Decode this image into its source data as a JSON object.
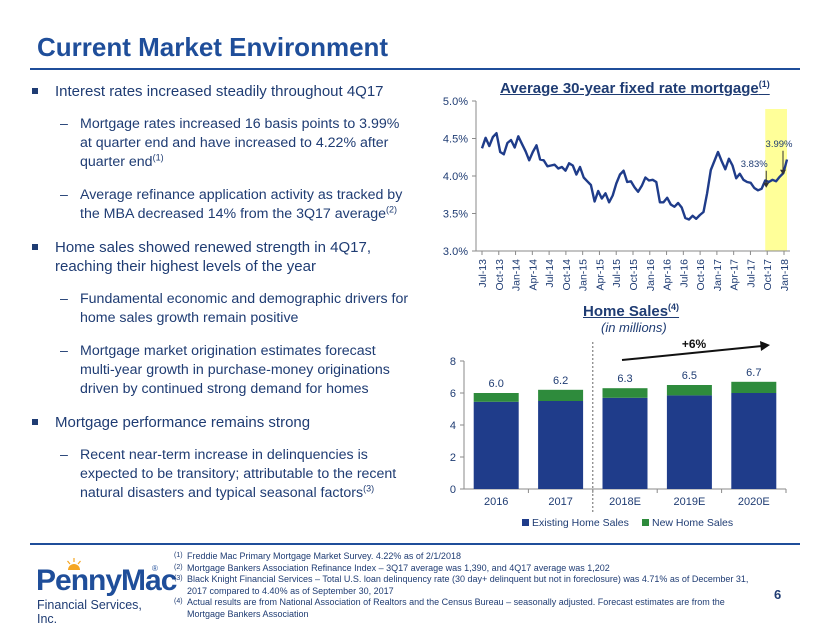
{
  "slide": {
    "title": "Current Market Environment",
    "page_number": "6"
  },
  "bullets": [
    {
      "text": "Interest rates increased steadily throughout 4Q17",
      "subs": [
        {
          "text": "Mortgage rates increased 16 basis points to 3.99% at quarter end and have increased to 4.22% after quarter end",
          "sup": "(1)"
        },
        {
          "text": "Average refinance application activity as tracked by the MBA decreased 14% from the 3Q17 average",
          "sup": "(2)"
        }
      ]
    },
    {
      "text": "Home sales showed renewed strength in 4Q17, reaching their highest levels of the year",
      "subs": [
        {
          "text": "Fundamental economic and demographic drivers for home sales growth remain positive",
          "sup": ""
        },
        {
          "text": "Mortgage market origination estimates forecast multi-year growth in purchase-money originations driven by continued strong demand for homes",
          "sup": ""
        }
      ]
    },
    {
      "text": "Mortgage performance remains strong",
      "subs": [
        {
          "text": "Recent near-term increase in delinquencies is expected to be transitory; attributable to the recent natural disasters and typical seasonal factors",
          "sup": "(3)"
        }
      ]
    }
  ],
  "chart_data": [
    {
      "type": "line",
      "title": "Average 30-year fixed rate mortgage",
      "title_sup": "(1)",
      "ylim": [
        3.0,
        5.0
      ],
      "y_ticks": [
        3.0,
        3.5,
        4.0,
        4.5,
        5.0
      ],
      "y_tick_labels": [
        "3.0%",
        "3.5%",
        "4.0%",
        "4.5%",
        "5.0%"
      ],
      "x_tick_labels": [
        "Jul-13",
        "Oct-13",
        "Jan-14",
        "Apr-14",
        "Jul-14",
        "Oct-14",
        "Jan-15",
        "Apr-15",
        "Jul-15",
        "Oct-15",
        "Jan-16",
        "Apr-16",
        "Jul-16",
        "Oct-16",
        "Jan-17",
        "Apr-17",
        "Jul-17",
        "Oct-17",
        "Jan-18"
      ],
      "series": [
        {
          "name": "30-year fixed rate",
          "color": "#1f3c8a",
          "values": [
            4.37,
            4.51,
            4.4,
            4.52,
            4.57,
            4.32,
            4.29,
            4.44,
            4.48,
            4.38,
            4.53,
            4.43,
            4.33,
            4.21,
            4.32,
            4.41,
            4.22,
            4.21,
            4.13,
            4.14,
            4.15,
            4.1,
            4.12,
            4.07,
            4.17,
            4.14,
            4.02,
            4.12,
            3.98,
            3.93,
            3.88,
            3.66,
            3.8,
            3.7,
            3.77,
            3.65,
            3.74,
            3.9,
            4.02,
            4.07,
            3.92,
            3.93,
            3.85,
            3.79,
            3.87,
            3.98,
            3.94,
            3.95,
            3.92,
            3.65,
            3.65,
            3.71,
            3.62,
            3.59,
            3.64,
            3.58,
            3.44,
            3.42,
            3.47,
            3.43,
            3.48,
            3.52,
            3.77,
            4.08,
            4.2,
            4.32,
            4.2,
            4.09,
            4.23,
            4.14,
            3.97,
            4.03,
            3.95,
            3.92,
            3.91,
            3.84,
            3.81,
            3.83,
            3.94,
            3.92,
            3.95,
            3.93,
            3.99,
            4.04,
            4.22
          ]
        }
      ],
      "highlight_period": "Oct-17 to Jan-18",
      "highlight_color": "#ffff99",
      "annotations": [
        {
          "label": "3.83%",
          "value": 3.83
        },
        {
          "label": "3.99%",
          "value": 3.99
        }
      ]
    },
    {
      "type": "bar",
      "stacked": true,
      "title": "Home Sales",
      "title_sup": "(4)",
      "subtitle": "(in millions)",
      "categories": [
        "2016",
        "2017",
        "2018E",
        "2019E",
        "2020E"
      ],
      "ylim": [
        0,
        8
      ],
      "y_ticks": [
        0,
        2,
        4,
        6,
        8
      ],
      "series": [
        {
          "name": "Existing Home Sales",
          "color": "#1f3c8a",
          "values": [
            5.45,
            5.5,
            5.7,
            5.85,
            6.0
          ]
        },
        {
          "name": "New Home Sales",
          "color": "#2e8b3c",
          "values": [
            0.55,
            0.7,
            0.6,
            0.65,
            0.7
          ]
        }
      ],
      "totals": [
        "6.0",
        "6.2",
        "6.3",
        "6.5",
        "6.7"
      ],
      "growth_label": "+6%",
      "legend_position": "bottom"
    }
  ],
  "footnotes": [
    {
      "n": "(1)",
      "text": "Freddie Mac Primary Mortgage Market Survey. 4.22% as of 2/1/2018"
    },
    {
      "n": "(2)",
      "text": "Mortgage Bankers Association Refinance Index – 3Q17 average was 1,390, and 4Q17 average was 1,202"
    },
    {
      "n": "(3)",
      "text": "Black Knight Financial Services – Total U.S. loan delinquency rate (30 day+ delinquent but not in foreclosure) was 4.71% as of December 31, 2017 compared to 4.40% as of September 30, 2017"
    },
    {
      "n": "(4)",
      "text": "Actual results are from National Association of Realtors and the Census Bureau – seasonally adjusted. Forecast estimates are from the Mortgage Bankers Association"
    }
  ],
  "logo": {
    "wordmark": "PennyMac",
    "registered": "®",
    "tagline": "Financial Services, Inc."
  },
  "colors": {
    "brand_blue": "#1f4e9a",
    "navy": "#1f3c8a",
    "green": "#2e8b3c",
    "highlight": "#ffff99"
  }
}
